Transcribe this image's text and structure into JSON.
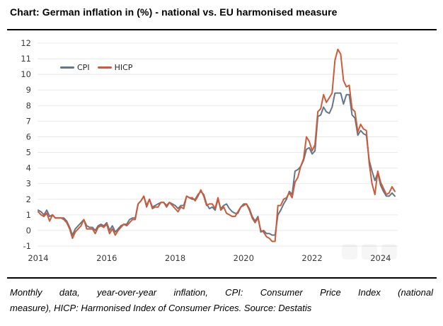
{
  "title": "Chart: German inflation in (%) - national vs. EU harmonised measure",
  "footer": {
    "line1": "Monthly data, year-over-year inflation, CPI: Consumer Price Index (national",
    "line2": "measure), HICP: Harmonised Index of Consumer Prices. Source: Destatis"
  },
  "colors": {
    "cpi_line": "#64768a",
    "hicp_line": "#cd5b39",
    "gridline": "#e8e8e8",
    "tick_label": "#3a3a3a",
    "divider": "#000000"
  },
  "watermark_icons": [
    "rounded-square",
    "rounded-square",
    "rounded-square"
  ],
  "chart_data": {
    "type": "line",
    "title": "German inflation in (%) - national vs. EU harmonised measure",
    "xlabel": "",
    "ylabel": "",
    "frequency": "monthly",
    "x_start": "2014-01",
    "x_end": "2024-06",
    "x_tick_labels": [
      "2014",
      "2016",
      "2018",
      "2020",
      "2022",
      "2024"
    ],
    "x_tick_month_offsets": [
      0,
      24,
      48,
      72,
      96,
      120
    ],
    "ylim": [
      -1,
      12
    ],
    "y_ticks": [
      -1,
      0,
      1,
      2,
      3,
      4,
      5,
      6,
      7,
      8,
      9,
      10,
      11,
      12
    ],
    "grid": "horizontal",
    "legend_position": "top-left-inside",
    "series": [
      {
        "name": "CPI",
        "color": "#64768a",
        "values": [
          1.3,
          1.2,
          1.0,
          1.3,
          0.9,
          1.0,
          0.8,
          0.8,
          0.8,
          0.8,
          0.6,
          0.2,
          -0.3,
          0.1,
          0.3,
          0.5,
          0.7,
          0.3,
          0.2,
          0.2,
          0.0,
          0.3,
          0.4,
          0.3,
          0.5,
          0.0,
          0.3,
          -0.1,
          0.1,
          0.3,
          0.4,
          0.4,
          0.7,
          0.8,
          0.8,
          1.7,
          1.9,
          2.2,
          1.6,
          2.0,
          1.5,
          1.6,
          1.7,
          1.8,
          1.8,
          1.6,
          1.8,
          1.7,
          1.6,
          1.4,
          1.6,
          1.6,
          2.2,
          2.1,
          2.0,
          2.0,
          2.3,
          2.5,
          2.3,
          1.7,
          1.4,
          1.5,
          1.3,
          2.0,
          1.4,
          1.6,
          1.7,
          1.4,
          1.2,
          1.1,
          1.1,
          1.5,
          1.7,
          1.7,
          1.4,
          0.9,
          0.6,
          0.9,
          -0.1,
          0.0,
          -0.2,
          -0.2,
          -0.3,
          -0.3,
          1.0,
          1.3,
          1.7,
          2.0,
          2.5,
          2.3,
          3.8,
          3.9,
          4.1,
          4.5,
          5.2,
          5.3,
          4.9,
          5.1,
          7.3,
          7.4,
          7.9,
          7.6,
          7.5,
          7.9,
          8.8,
          8.8,
          8.8,
          8.1,
          8.7,
          8.7,
          7.4,
          7.2,
          6.1,
          6.4,
          6.2,
          6.1,
          4.5,
          3.8,
          3.2,
          3.7,
          2.9,
          2.5,
          2.2,
          2.2,
          2.4,
          2.2
        ]
      },
      {
        "name": "HICP",
        "color": "#cd5b39",
        "values": [
          1.2,
          1.0,
          0.9,
          1.1,
          0.6,
          1.0,
          0.8,
          0.8,
          0.8,
          0.7,
          0.5,
          0.1,
          -0.5,
          -0.1,
          0.1,
          0.3,
          0.7,
          0.1,
          0.1,
          0.1,
          -0.2,
          0.2,
          0.3,
          0.2,
          0.4,
          -0.2,
          0.1,
          -0.3,
          0.0,
          0.2,
          0.4,
          0.3,
          0.5,
          0.7,
          0.7,
          1.7,
          1.9,
          2.2,
          1.5,
          2.0,
          1.4,
          1.5,
          1.5,
          1.8,
          1.8,
          1.5,
          1.8,
          1.6,
          1.4,
          1.2,
          1.5,
          1.4,
          2.2,
          2.1,
          2.1,
          1.9,
          2.2,
          2.6,
          2.2,
          1.6,
          1.7,
          1.7,
          1.4,
          2.1,
          1.3,
          1.5,
          1.1,
          1.0,
          0.9,
          0.9,
          1.2,
          1.5,
          1.6,
          1.7,
          1.3,
          0.8,
          0.5,
          0.8,
          0.0,
          -0.1,
          -0.4,
          -0.5,
          -0.7,
          -0.7,
          1.6,
          1.6,
          2.0,
          2.1,
          2.4,
          2.1,
          3.1,
          3.4,
          4.1,
          4.6,
          6.0,
          5.7,
          5.1,
          5.5,
          7.6,
          7.8,
          8.7,
          8.2,
          8.5,
          8.8,
          10.9,
          11.6,
          11.3,
          9.6,
          9.2,
          9.3,
          7.8,
          7.6,
          6.3,
          6.8,
          6.5,
          6.4,
          4.3,
          3.0,
          2.3,
          3.8,
          3.1,
          2.7,
          2.3,
          2.4,
          2.8,
          2.5
        ]
      }
    ]
  }
}
